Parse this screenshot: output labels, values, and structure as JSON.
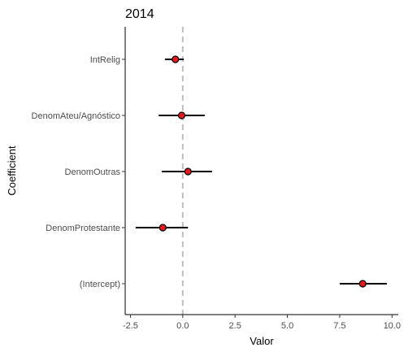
{
  "chart_data": {
    "type": "dot-and-whisker",
    "title": "2014",
    "xlabel": "Valor",
    "ylabel": "Coefficient",
    "xlim": [
      -2.75,
      10.3
    ],
    "x_ticks": [
      -2.5,
      0.0,
      2.5,
      5.0,
      7.5,
      10.0
    ],
    "x_tick_labels": [
      "-2.5",
      "0.0",
      "2.5",
      "5.0",
      "7.5",
      "10.0"
    ],
    "reference_line": 0,
    "grid": false,
    "coefficients": [
      {
        "term": "IntRelig",
        "estimate": -0.35,
        "low": -0.85,
        "high": 0.05
      },
      {
        "term": "DenomAteu/Agnóstico",
        "estimate": -0.05,
        "low": -1.15,
        "high": 1.05
      },
      {
        "term": "DenomOutras",
        "estimate": 0.25,
        "low": -1.0,
        "high": 1.4
      },
      {
        "term": "DenomProtestante",
        "estimate": -0.95,
        "low": -2.25,
        "high": 0.25
      },
      {
        "term": "(Intercept)",
        "estimate": 8.6,
        "low": 7.5,
        "high": 9.75
      }
    ],
    "colors": {
      "point_fill": "#e41a1c",
      "point_stroke": "#000000",
      "whisker": "#000000",
      "reference_line": "#bdbdbd"
    }
  }
}
